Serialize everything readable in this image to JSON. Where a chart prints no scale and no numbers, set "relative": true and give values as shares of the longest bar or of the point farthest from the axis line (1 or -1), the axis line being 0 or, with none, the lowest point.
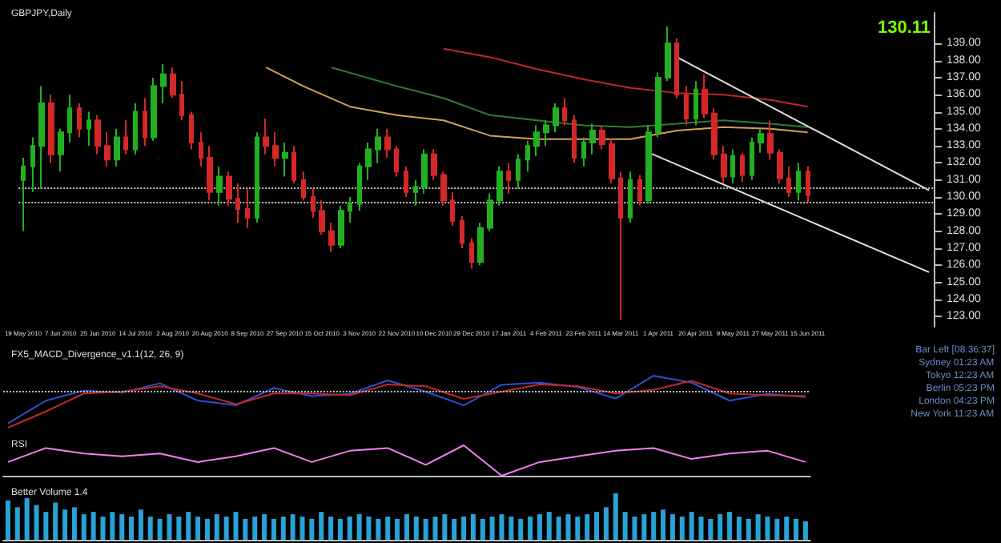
{
  "chart_data": [
    {
      "type": "candlestick",
      "title": "GBPJPY,Daily",
      "categories": [
        "19 May 2010",
        null,
        null,
        null,
        "7 Jun 2010",
        null,
        null,
        null,
        "25 Jun 2010",
        null,
        null,
        null,
        "14 Jul 2010",
        null,
        null,
        null,
        "2 Aug 2010",
        null,
        null,
        null,
        "20 Aug 2010",
        null,
        null,
        null,
        "8 Sep 2010",
        null,
        null,
        null,
        "27 Sep 2010",
        null,
        null,
        null,
        "15 Oct 2010",
        null,
        null,
        null,
        "3 Nov 2010",
        null,
        null,
        null,
        "22 Nov 2010",
        null,
        null,
        null,
        "10 Dec 2010",
        null,
        null,
        null,
        "29 Dec 2010",
        null,
        null,
        null,
        "17 Jan 2011",
        null,
        null,
        null,
        "4 Feb 2011",
        null,
        null,
        null,
        "23 Feb 2011",
        null,
        null,
        null,
        "14 Mar 2011",
        null,
        null,
        null,
        "1 Apr 2011",
        null,
        null,
        null,
        "20 Apr 2011",
        null,
        null,
        null,
        "9 May 2011",
        null,
        null,
        null,
        "27 May 2011",
        null,
        null,
        null,
        "15 Jun 2011",
        null,
        null,
        null,
        null,
        null,
        null,
        null,
        null,
        null,
        null,
        null,
        null,
        null
      ],
      "ohlc": [
        [
          131.0,
          132.3,
          128.0,
          131.8
        ],
        [
          131.8,
          133.5,
          130.3,
          133.0
        ],
        [
          133.0,
          136.5,
          130.5,
          135.5
        ],
        [
          135.5,
          136.0,
          132.0,
          132.5
        ],
        [
          132.5,
          134.0,
          131.5,
          133.8
        ],
        [
          133.8,
          136.0,
          133.2,
          135.2
        ],
        [
          135.2,
          135.5,
          133.5,
          134.0
        ],
        [
          134.0,
          135.0,
          133.0,
          134.5
        ],
        [
          134.5,
          134.8,
          132.5,
          133.0
        ],
        [
          133.0,
          133.8,
          131.8,
          132.2
        ],
        [
          132.2,
          134.0,
          131.8,
          133.5
        ],
        [
          133.5,
          134.5,
          132.5,
          132.8
        ],
        [
          132.8,
          135.5,
          132.5,
          135.0
        ],
        [
          135.0,
          135.8,
          133.0,
          133.5
        ],
        [
          133.5,
          137.0,
          133.3,
          136.5
        ],
        [
          136.5,
          137.8,
          135.5,
          137.2
        ],
        [
          137.2,
          137.6,
          135.8,
          136.0
        ],
        [
          136.0,
          136.8,
          134.5,
          134.8
        ],
        [
          134.8,
          135.0,
          132.8,
          133.2
        ],
        [
          133.2,
          133.8,
          131.8,
          132.3
        ],
        [
          132.3,
          133.0,
          129.8,
          130.3
        ],
        [
          130.3,
          131.8,
          129.5,
          131.2
        ],
        [
          131.2,
          131.5,
          129.5,
          129.9
        ],
        [
          129.9,
          130.8,
          128.5,
          129.3
        ],
        [
          129.3,
          130.5,
          128.2,
          128.8
        ],
        [
          128.8,
          133.8,
          128.5,
          133.5
        ],
        [
          133.5,
          134.6,
          132.5,
          133.0
        ],
        [
          133.0,
          133.8,
          131.8,
          132.3
        ],
        [
          132.3,
          133.2,
          131.2,
          132.6
        ],
        [
          132.6,
          133.0,
          130.8,
          131.0
        ],
        [
          131.0,
          131.5,
          129.8,
          130.0
        ],
        [
          130.0,
          130.5,
          128.8,
          129.2
        ],
        [
          129.2,
          129.8,
          127.8,
          128.0
        ],
        [
          128.0,
          128.5,
          126.8,
          127.2
        ],
        [
          127.2,
          129.5,
          127.0,
          129.2
        ],
        [
          129.2,
          130.0,
          128.5,
          129.6
        ],
        [
          129.6,
          132.0,
          129.2,
          131.8
        ],
        [
          131.8,
          133.2,
          131.0,
          132.8
        ],
        [
          132.8,
          134.0,
          132.0,
          133.5
        ],
        [
          133.5,
          134.0,
          132.3,
          132.8
        ],
        [
          132.8,
          133.0,
          131.2,
          131.5
        ],
        [
          131.5,
          131.8,
          130.0,
          130.3
        ],
        [
          130.3,
          131.0,
          129.5,
          130.6
        ],
        [
          130.6,
          132.8,
          130.2,
          132.5
        ],
        [
          132.5,
          132.8,
          131.0,
          131.3
        ],
        [
          131.3,
          131.5,
          129.5,
          129.8
        ],
        [
          129.8,
          130.3,
          128.3,
          128.6
        ],
        [
          128.6,
          128.9,
          127.0,
          127.3
        ],
        [
          127.3,
          127.6,
          125.8,
          126.2
        ],
        [
          126.2,
          128.5,
          126.0,
          128.2
        ],
        [
          128.2,
          130.2,
          128.0,
          129.8
        ],
        [
          129.8,
          131.8,
          129.5,
          131.5
        ],
        [
          131.5,
          132.0,
          130.2,
          131.0
        ],
        [
          131.0,
          132.5,
          130.5,
          132.2
        ],
        [
          132.2,
          133.3,
          131.5,
          133.0
        ],
        [
          133.0,
          134.2,
          132.4,
          133.8
        ],
        [
          133.8,
          134.5,
          133.0,
          134.2
        ],
        [
          134.2,
          135.5,
          133.8,
          135.2
        ],
        [
          135.2,
          135.8,
          134.2,
          134.5
        ],
        [
          134.5,
          134.8,
          132.0,
          132.3
        ],
        [
          132.3,
          133.5,
          131.8,
          133.2
        ],
        [
          133.2,
          134.3,
          132.5,
          133.9
        ],
        [
          133.9,
          134.2,
          132.8,
          133.1
        ],
        [
          133.1,
          133.4,
          130.8,
          131.1
        ],
        [
          131.1,
          131.5,
          122.8,
          128.8
        ],
        [
          128.8,
          131.5,
          128.5,
          131.0
        ],
        [
          131.0,
          131.3,
          129.5,
          129.8
        ],
        [
          129.8,
          134.2,
          129.6,
          133.8
        ],
        [
          133.8,
          137.3,
          133.5,
          137.0
        ],
        [
          137.0,
          140.0,
          136.8,
          139.0
        ],
        [
          139.0,
          139.3,
          135.8,
          136.0
        ],
        [
          136.0,
          136.5,
          134.2,
          134.6
        ],
        [
          134.6,
          136.8,
          134.2,
          136.3
        ],
        [
          136.3,
          137.2,
          134.6,
          134.9
        ],
        [
          134.9,
          135.2,
          132.2,
          132.5
        ],
        [
          132.5,
          133.0,
          130.8,
          131.2
        ],
        [
          131.2,
          132.8,
          130.8,
          132.4
        ],
        [
          132.4,
          132.6,
          130.9,
          131.3
        ],
        [
          131.3,
          133.5,
          131.0,
          133.2
        ],
        [
          133.2,
          134.0,
          132.6,
          133.7
        ],
        [
          133.7,
          134.5,
          132.2,
          132.6
        ],
        [
          132.6,
          132.8,
          130.8,
          131.1
        ],
        [
          131.1,
          131.8,
          130.0,
          130.3
        ],
        [
          130.3,
          132.0,
          129.8,
          131.5
        ],
        [
          131.5,
          131.8,
          129.7,
          130.11
        ],
        null,
        null,
        null,
        null,
        null,
        null,
        null,
        null,
        null,
        null,
        null,
        null,
        null
      ],
      "ylim": [
        122.4,
        140.8
      ],
      "yticks": [
        {
          "value": 123,
          "label": "123.00"
        },
        {
          "value": 124,
          "label": "124.00"
        },
        {
          "value": 125,
          "label": "125.00"
        },
        {
          "value": 126,
          "label": "126.00"
        },
        {
          "value": 127,
          "label": "127.00"
        },
        {
          "value": 128,
          "label": "128.00"
        },
        {
          "value": 129,
          "label": "129.00"
        },
        {
          "value": 130,
          "label": "130.00"
        },
        {
          "value": 131,
          "label": "131.00"
        },
        {
          "value": 132,
          "label": "132.00"
        },
        {
          "value": 133,
          "label": "133.00"
        },
        {
          "value": 134,
          "label": "134.00"
        },
        {
          "value": 135,
          "label": "135.00"
        },
        {
          "value": 136,
          "label": "136.00"
        },
        {
          "value": 137,
          "label": "137.00"
        },
        {
          "value": 138,
          "label": "138.00"
        },
        {
          "value": 139,
          "label": "139.00"
        }
      ],
      "series": [
        {
          "type": "line",
          "color": "#c0282a",
          "values": [
            null,
            null,
            null,
            null,
            null,
            null,
            null,
            null,
            null,
            null,
            null,
            null,
            null,
            null,
            null,
            null,
            null,
            null,
            null,
            null,
            null,
            null,
            null,
            null,
            null,
            null,
            null,
            null,
            null,
            null,
            null,
            null,
            null,
            null,
            null,
            null,
            null,
            null,
            null,
            null,
            null,
            null,
            null,
            null,
            null,
            138.7,
            null,
            null,
            null,
            null,
            138.2,
            null,
            null,
            null,
            null,
            137.5,
            null,
            null,
            null,
            null,
            136.9,
            null,
            null,
            null,
            null,
            136.4,
            null,
            null,
            null,
            null,
            136.1,
            null,
            null,
            null,
            null,
            136.0,
            null,
            null,
            null,
            null,
            135.7,
            null,
            null,
            null,
            135.3,
            null,
            null,
            null,
            null,
            null,
            null,
            null,
            null,
            null,
            null,
            null,
            null,
            null
          ]
        },
        {
          "type": "line",
          "color": "#2e7d32",
          "values": [
            null,
            null,
            null,
            null,
            null,
            null,
            null,
            null,
            null,
            null,
            null,
            null,
            null,
            null,
            null,
            null,
            null,
            null,
            null,
            null,
            null,
            null,
            null,
            null,
            null,
            null,
            null,
            null,
            null,
            null,
            null,
            null,
            null,
            137.6,
            null,
            null,
            null,
            null,
            null,
            null,
            136.5,
            null,
            null,
            null,
            null,
            135.8,
            null,
            null,
            null,
            null,
            134.8,
            null,
            null,
            null,
            null,
            134.5,
            null,
            null,
            null,
            null,
            134.2,
            null,
            null,
            null,
            null,
            134.1,
            null,
            null,
            null,
            null,
            134.3,
            null,
            null,
            null,
            null,
            134.5,
            null,
            null,
            null,
            null,
            134.3,
            null,
            null,
            null,
            134.1,
            null,
            null,
            null,
            null,
            null,
            null,
            null,
            null,
            null,
            null,
            null,
            null,
            null
          ]
        },
        {
          "type": "line",
          "color": "#d4a056",
          "values": [
            null,
            null,
            null,
            null,
            null,
            null,
            null,
            null,
            null,
            null,
            null,
            null,
            null,
            null,
            null,
            null,
            null,
            null,
            null,
            null,
            null,
            null,
            null,
            null,
            null,
            null,
            137.6,
            null,
            null,
            null,
            136.5,
            null,
            null,
            null,
            null,
            135.3,
            null,
            null,
            null,
            null,
            134.8,
            null,
            null,
            null,
            null,
            134.5,
            null,
            null,
            null,
            null,
            133.6,
            null,
            null,
            null,
            null,
            133.4,
            null,
            null,
            null,
            null,
            133.4,
            null,
            null,
            null,
            null,
            133.4,
            null,
            null,
            null,
            null,
            133.9,
            null,
            null,
            null,
            null,
            134.1,
            null,
            null,
            null,
            null,
            134.0,
            null,
            null,
            null,
            133.8,
            null,
            null,
            null,
            null,
            null,
            null,
            null,
            null,
            null,
            null,
            null,
            null,
            null
          ]
        },
        {
          "type": "line",
          "color": "#e0e0e0",
          "values": [
            null,
            null,
            null,
            null,
            null,
            null,
            null,
            null,
            null,
            null,
            null,
            null,
            null,
            null,
            null,
            null,
            null,
            null,
            null,
            null,
            null,
            null,
            null,
            null,
            null,
            null,
            null,
            null,
            null,
            null,
            null,
            null,
            null,
            null,
            null,
            null,
            null,
            null,
            null,
            null,
            null,
            null,
            null,
            null,
            null,
            null,
            null,
            null,
            null,
            null,
            null,
            null,
            null,
            null,
            null,
            null,
            null,
            null,
            null,
            null,
            null,
            null,
            null,
            null,
            null,
            null,
            null,
            null,
            null,
            null,
            138.2,
            null,
            null,
            null,
            null,
            null,
            null,
            null,
            null,
            null,
            null,
            null,
            null,
            null,
            null,
            null,
            null,
            null,
            null,
            null,
            null,
            null,
            null,
            null,
            null,
            null,
            null,
            130.4
          ]
        },
        {
          "type": "line",
          "color": "#e0e0e0",
          "values": [
            null,
            null,
            null,
            null,
            null,
            null,
            null,
            null,
            null,
            null,
            null,
            null,
            null,
            null,
            null,
            null,
            null,
            null,
            null,
            null,
            null,
            null,
            null,
            null,
            null,
            null,
            null,
            null,
            null,
            null,
            null,
            null,
            null,
            null,
            null,
            null,
            null,
            null,
            null,
            null,
            null,
            null,
            null,
            null,
            null,
            null,
            null,
            null,
            null,
            null,
            null,
            null,
            null,
            null,
            null,
            null,
            null,
            null,
            null,
            null,
            null,
            null,
            null,
            null,
            null,
            null,
            null,
            132.6,
            null,
            null,
            null,
            null,
            null,
            null,
            null,
            null,
            null,
            null,
            null,
            null,
            null,
            null,
            null,
            null,
            null,
            null,
            null,
            null,
            null,
            null,
            null,
            null,
            null,
            null,
            null,
            null,
            null,
            125.6
          ]
        }
      ],
      "ref_lines": [
        {
          "axis": "y",
          "value": 130.5,
          "color": "#c8c8c8",
          "line_style": "dotted"
        },
        {
          "axis": "y",
          "value": 129.7,
          "color": "#c8c8c8",
          "line_style": "dotted"
        }
      ],
      "annotations": [
        "130.11"
      ]
    },
    {
      "type": "line",
      "relative": true,
      "title": "FX5_MACD_Divergence_v1.1(12, 26, 9)",
      "tick_labels": false,
      "categories": [
        null,
        null,
        null,
        null,
        null,
        null,
        null,
        null,
        null,
        null,
        null,
        null,
        null,
        null,
        null,
        null,
        null,
        null,
        null,
        null,
        null,
        null,
        null,
        null,
        null,
        null,
        null,
        null,
        null,
        null,
        null,
        null,
        null,
        null,
        null,
        null,
        null,
        null,
        null,
        null,
        null,
        null,
        null,
        null,
        null,
        null,
        null,
        null,
        null,
        null,
        null,
        null,
        null,
        null,
        null,
        null,
        null,
        null,
        null,
        null,
        null,
        null,
        null,
        null,
        null,
        null,
        null,
        null,
        null,
        null,
        null,
        null,
        null,
        null,
        null,
        null,
        null,
        null,
        null,
        null,
        null,
        null,
        null,
        null,
        null
      ],
      "series": [
        {
          "color": "#3050d0",
          "values": [
            -0.88,
            null,
            null,
            null,
            -0.25,
            null,
            null,
            null,
            0.03,
            null,
            null,
            null,
            -0.03,
            null,
            null,
            null,
            0.23,
            null,
            null,
            null,
            -0.25,
            null,
            null,
            null,
            -0.38,
            null,
            null,
            null,
            0.1,
            null,
            null,
            null,
            -0.12,
            null,
            null,
            null,
            -0.06,
            null,
            null,
            null,
            0.31,
            null,
            null,
            null,
            0,
            null,
            null,
            null,
            -0.38,
            null,
            null,
            null,
            0.19,
            null,
            null,
            null,
            0.25,
            null,
            null,
            null,
            0.13,
            null,
            null,
            null,
            -0.19,
            null,
            null,
            null,
            0.44,
            null,
            null,
            null,
            0.25,
            null,
            null,
            null,
            -0.25,
            null,
            null,
            null,
            -0.06,
            null,
            null,
            null,
            -0.15
          ]
        },
        {
          "color": "#c0282a",
          "values": [
            -1.0,
            null,
            null,
            null,
            -0.55,
            null,
            null,
            null,
            -0.05,
            null,
            null,
            null,
            0.0,
            null,
            null,
            null,
            0.15,
            null,
            null,
            null,
            -0.05,
            null,
            null,
            null,
            -0.35,
            null,
            null,
            null,
            -0.05,
            null,
            null,
            null,
            -0.05,
            null,
            null,
            null,
            -0.1,
            null,
            null,
            null,
            0.2,
            null,
            null,
            null,
            0.15,
            null,
            null,
            null,
            -0.2,
            null,
            null,
            null,
            0.0,
            null,
            null,
            null,
            0.2,
            null,
            null,
            null,
            0.15,
            null,
            null,
            null,
            -0.05,
            null,
            null,
            null,
            0.05,
            null,
            null,
            null,
            0.3,
            null,
            null,
            null,
            -0.05,
            null,
            null,
            null,
            -0.1,
            null,
            null,
            null,
            -0.12
          ]
        }
      ],
      "ref_lines": [
        {
          "axis": "y",
          "value": 0,
          "color": "#bbbbbb",
          "line_style": "dotted"
        }
      ],
      "annotations": [
        "Bar Left [08:36:37]",
        "Sydney 01:23 AM",
        "Tokyo 12:23 AM",
        "Berlin 05:23 PM",
        "London 04:23 PM",
        "New York 11:23 AM"
      ]
    },
    {
      "type": "line",
      "relative": true,
      "title": "RSI",
      "tick_labels": false,
      "categories": [
        null,
        null,
        null,
        null,
        null,
        null,
        null,
        null,
        null,
        null,
        null,
        null,
        null,
        null,
        null,
        null,
        null,
        null,
        null,
        null,
        null,
        null,
        null,
        null,
        null,
        null,
        null,
        null,
        null,
        null,
        null,
        null,
        null,
        null,
        null,
        null,
        null,
        null,
        null,
        null,
        null,
        null,
        null,
        null,
        null,
        null,
        null,
        null,
        null,
        null,
        null,
        null,
        null,
        null,
        null,
        null,
        null,
        null,
        null,
        null,
        null,
        null,
        null,
        null,
        null,
        null,
        null,
        null,
        null,
        null,
        null,
        null,
        null,
        null,
        null,
        null,
        null,
        null,
        null,
        null,
        null,
        null,
        null,
        null,
        null
      ],
      "series": [
        {
          "color": "#f080f0",
          "values": [
            0.45,
            null,
            null,
            null,
            0.91,
            null,
            null,
            null,
            0.73,
            null,
            null,
            null,
            0.64,
            null,
            null,
            null,
            0.73,
            null,
            null,
            null,
            0.45,
            null,
            null,
            null,
            0.64,
            null,
            null,
            null,
            0.91,
            null,
            null,
            null,
            0.45,
            null,
            null,
            null,
            0.82,
            null,
            null,
            null,
            0.91,
            null,
            null,
            null,
            0.36,
            null,
            null,
            null,
            1.0,
            null,
            null,
            null,
            0,
            null,
            null,
            null,
            0.45,
            null,
            null,
            null,
            0.64,
            null,
            null,
            null,
            0.82,
            null,
            null,
            null,
            0.91,
            null,
            null,
            null,
            0.55,
            null,
            null,
            null,
            0.73,
            null,
            null,
            null,
            0.82,
            null,
            null,
            null,
            0.45
          ]
        }
      ]
    },
    {
      "type": "bar",
      "relative": true,
      "title": "Better Volume 1.4",
      "tick_labels": false,
      "categories": [
        null,
        null,
        null,
        null,
        null,
        null,
        null,
        null,
        null,
        null,
        null,
        null,
        null,
        null,
        null,
        null,
        null,
        null,
        null,
        null,
        null,
        null,
        null,
        null,
        null,
        null,
        null,
        null,
        null,
        null,
        null,
        null,
        null,
        null,
        null,
        null,
        null,
        null,
        null,
        null,
        null,
        null,
        null,
        null,
        null,
        null,
        null,
        null,
        null,
        null,
        null,
        null,
        null,
        null,
        null,
        null,
        null,
        null,
        null,
        null,
        null,
        null,
        null,
        null,
        null,
        null,
        null,
        null,
        null,
        null,
        null,
        null,
        null,
        null,
        null,
        null,
        null,
        null,
        null,
        null,
        null,
        null,
        null,
        null,
        null
      ],
      "color": "#29a3d6",
      "values": [
        0.85,
        0.7,
        0.9,
        0.75,
        0.6,
        0.8,
        0.65,
        0.7,
        0.55,
        0.6,
        0.5,
        0.6,
        0.55,
        0.5,
        0.65,
        0.5,
        0.45,
        0.55,
        0.5,
        0.6,
        0.5,
        0.45,
        0.55,
        0.5,
        0.6,
        0.45,
        0.5,
        0.55,
        0.45,
        0.5,
        0.55,
        0.5,
        0.45,
        0.6,
        0.5,
        0.45,
        0.5,
        0.55,
        0.5,
        0.45,
        0.5,
        0.45,
        0.55,
        0.5,
        0.45,
        0.5,
        0.55,
        0.45,
        0.5,
        0.55,
        0.45,
        0.5,
        0.55,
        0.5,
        0.45,
        0.5,
        0.55,
        0.6,
        0.5,
        0.55,
        0.5,
        0.55,
        0.6,
        0.7,
        1.0,
        0.6,
        0.5,
        0.55,
        0.6,
        0.65,
        0.55,
        0.5,
        0.6,
        0.5,
        0.45,
        0.55,
        0.6,
        0.5,
        0.45,
        0.55,
        0.5,
        0.45,
        0.5,
        0.45,
        0.4
      ]
    }
  ]
}
